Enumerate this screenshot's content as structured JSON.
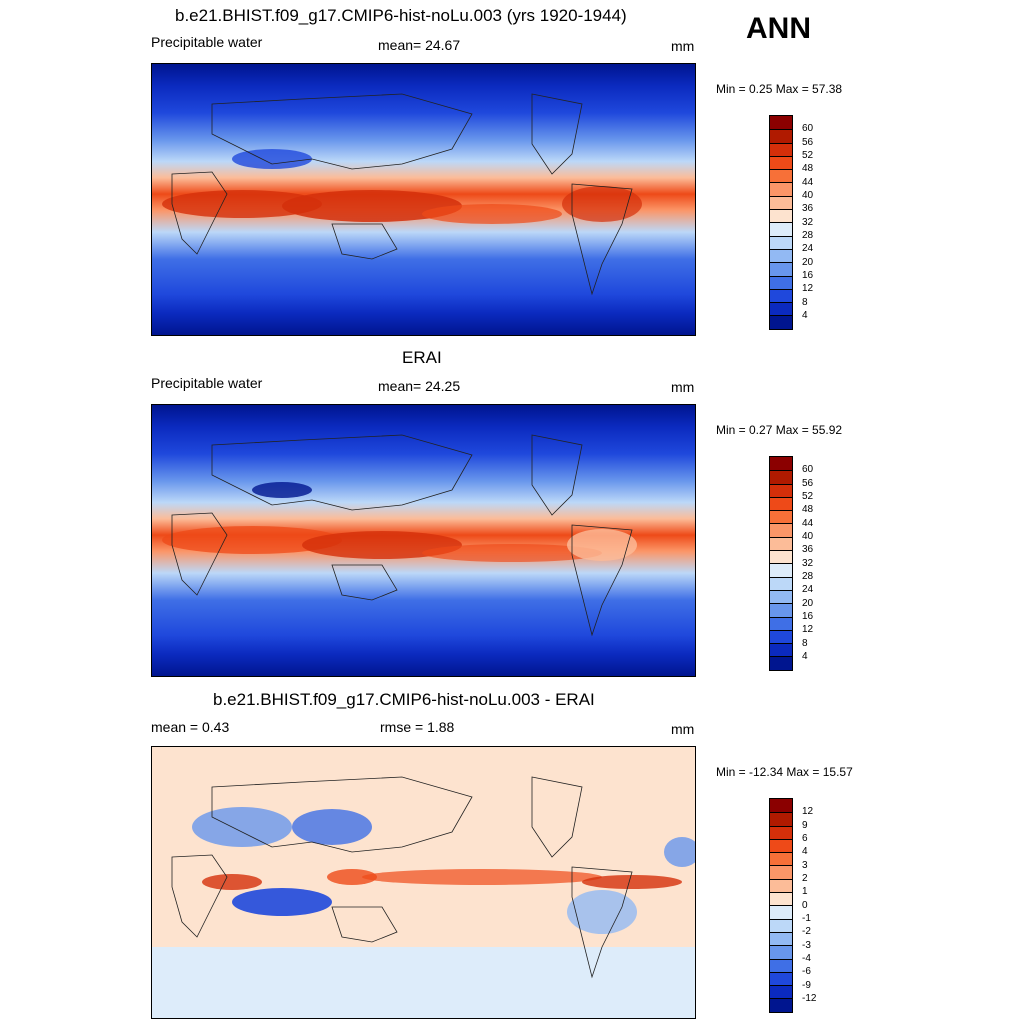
{
  "season": "ANN",
  "panels": [
    {
      "title": "b.e21.BHIST.f09_g17.CMIP6-hist-noLu.003 (yrs 1920-1944)",
      "left": "Precipitable water",
      "center": "mean=  24.67",
      "units": "mm",
      "minmax": "Min =   0.25 Max =  57.38"
    },
    {
      "title": "ERAI",
      "left": "Precipitable water",
      "center": "mean=  24.25",
      "units": "mm",
      "minmax": "Min =   0.27 Max =  55.92"
    },
    {
      "title": "b.e21.BHIST.f09_g17.CMIP6-hist-noLu.003 - ERAI",
      "left": "mean =   0.43",
      "center": "rmse =   1.88",
      "units": "mm",
      "minmax": "Min = -12.34 Max =  15.57"
    }
  ],
  "colorbars": {
    "absolute": {
      "labels": [
        "60",
        "56",
        "52",
        "48",
        "44",
        "40",
        "36",
        "32",
        "28",
        "24",
        "20",
        "16",
        "12",
        "8",
        "4"
      ],
      "colors": [
        "#8b0000",
        "#b01a00",
        "#d42f0a",
        "#ee4a18",
        "#f77038",
        "#fb9668",
        "#fcbc98",
        "#fde3cf",
        "#ddecfa",
        "#bcd8f8",
        "#92b9f3",
        "#6896ec",
        "#3f6fe6",
        "#1f48dc",
        "#0b2abf",
        "#00158f"
      ]
    },
    "difference": {
      "labels": [
        "12",
        "9",
        "6",
        "4",
        "3",
        "2",
        "1",
        "0",
        "-1",
        "-2",
        "-3",
        "-4",
        "-6",
        "-9",
        "-12"
      ],
      "colors": [
        "#8b0000",
        "#b01a00",
        "#d42f0a",
        "#ee4a18",
        "#f77038",
        "#fb9668",
        "#fcbc98",
        "#fde3cf",
        "#ddecfa",
        "#bcd8f8",
        "#92b9f3",
        "#6896ec",
        "#3f6fe6",
        "#1f48dc",
        "#0b2abf",
        "#00158f"
      ]
    }
  }
}
